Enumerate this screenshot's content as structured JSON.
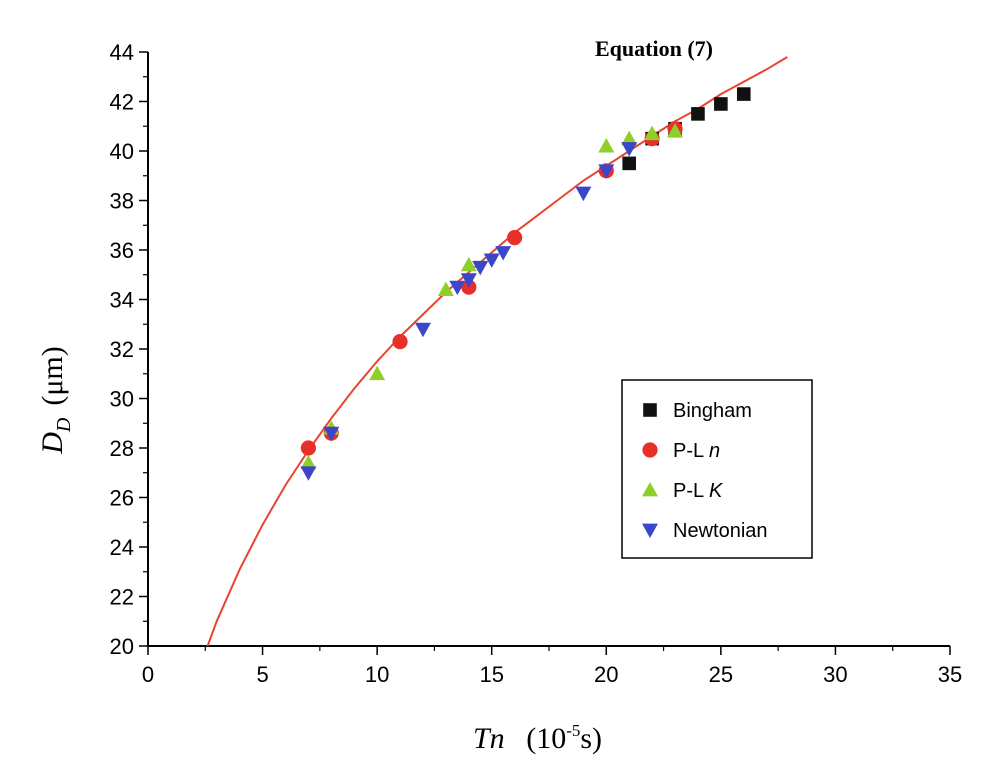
{
  "chart_data": {
    "type": "scatter",
    "title": "",
    "xlabel": {
      "symbol": "Tn",
      "unit_base": "10",
      "unit_exp": "-5",
      "unit_suffix": "s"
    },
    "ylabel": {
      "symbol": "D",
      "subscript": "D",
      "unit": "μm"
    },
    "xlim": [
      0,
      35
    ],
    "ylim": [
      20,
      44
    ],
    "xticks": [
      "0",
      "5",
      "10",
      "15",
      "20",
      "25",
      "30",
      "35"
    ],
    "yticks": [
      "20",
      "22",
      "24",
      "26",
      "28",
      "30",
      "32",
      "34",
      "36",
      "38",
      "40",
      "42",
      "44"
    ],
    "grid": false,
    "legend_position": "right",
    "annotation": "Equation (7)",
    "fit_curve": {
      "name": "Equation (7)",
      "color": "#e8452f",
      "x": [
        2.6,
        3,
        4,
        5,
        6,
        7,
        8,
        9,
        10,
        11,
        12,
        13,
        14,
        15,
        16,
        17,
        18,
        19,
        20,
        21,
        22,
        23,
        24,
        25,
        26,
        27,
        27.9
      ],
      "y": [
        20.0,
        21.0,
        23.1,
        24.9,
        26.5,
        27.9,
        29.2,
        30.4,
        31.5,
        32.5,
        33.4,
        34.3,
        35.1,
        35.9,
        36.7,
        37.4,
        38.1,
        38.8,
        39.4,
        40.0,
        40.6,
        41.2,
        41.7,
        42.3,
        42.8,
        43.3,
        43.8
      ]
    },
    "series": [
      {
        "name": "Bingham",
        "marker": "square",
        "color": "#111111",
        "points": [
          [
            21,
            39.5
          ],
          [
            22,
            40.5
          ],
          [
            23,
            40.9
          ],
          [
            24,
            41.5
          ],
          [
            25,
            41.9
          ],
          [
            26,
            42.3
          ]
        ]
      },
      {
        "name": "P-L n",
        "label_plain": "P-L ",
        "label_italic": "n",
        "marker": "circle",
        "color": "#e8302a",
        "points": [
          [
            7,
            28.0
          ],
          [
            8,
            28.6
          ],
          [
            11,
            32.3
          ],
          [
            14,
            34.5
          ],
          [
            16,
            36.5
          ],
          [
            20,
            39.2
          ],
          [
            22,
            40.5
          ],
          [
            23,
            40.9
          ]
        ]
      },
      {
        "name": "P-L K",
        "label_plain": "P-L ",
        "label_italic": "K",
        "marker": "triangle-up",
        "color": "#8ecf2a",
        "points": [
          [
            7,
            27.4
          ],
          [
            8,
            28.8
          ],
          [
            10,
            31.0
          ],
          [
            13,
            34.4
          ],
          [
            14,
            35.4
          ],
          [
            20,
            40.2
          ],
          [
            21,
            40.5
          ],
          [
            22,
            40.7
          ],
          [
            23,
            40.8
          ]
        ]
      },
      {
        "name": "Newtonian",
        "label_plain": "Newtonian",
        "label_italic": "",
        "marker": "triangle-down",
        "color": "#3b46c8",
        "points": [
          [
            7,
            27.0
          ],
          [
            8,
            28.6
          ],
          [
            12,
            32.8
          ],
          [
            13.5,
            34.5
          ],
          [
            14,
            34.8
          ],
          [
            14.5,
            35.3
          ],
          [
            15,
            35.6
          ],
          [
            15.5,
            35.9
          ],
          [
            19,
            38.3
          ],
          [
            20,
            39.2
          ],
          [
            21,
            40.1
          ]
        ]
      }
    ]
  }
}
